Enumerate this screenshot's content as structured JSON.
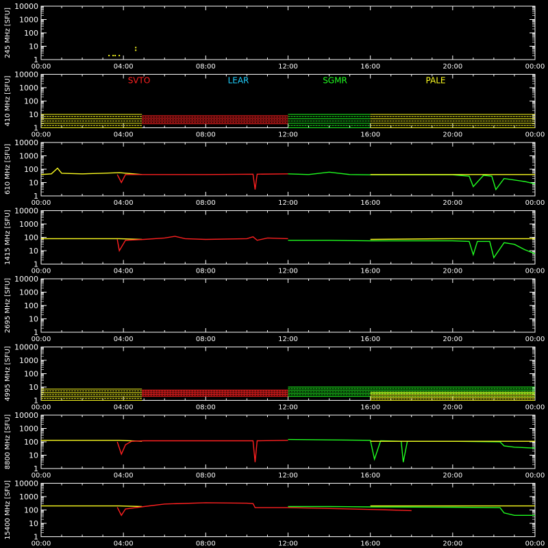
{
  "chart_data": {
    "type": "line",
    "ylabel_unit": "[SFU]",
    "y_ticks": [
      "10000",
      "1000",
      "100",
      "10",
      "1"
    ],
    "x_ticks": [
      "00:00",
      "04:00",
      "08:00",
      "12:00",
      "16:00",
      "20:00",
      "00:00"
    ],
    "xlim": [
      0,
      24
    ],
    "ylim": [
      1,
      10000
    ],
    "yscale": "log",
    "legend": [
      {
        "name": "SVTO",
        "color": "#ff2020"
      },
      {
        "name": "LEAR",
        "color": "#20d0ff"
      },
      {
        "name": "SGMR",
        "color": "#20ff20"
      },
      {
        "name": "PALE",
        "color": "#ffff20"
      }
    ],
    "panels": [
      {
        "label": "245 MHz",
        "mode": "sparse",
        "series": [
          {
            "station": "PALE",
            "points": [
              [
                3.3,
                2
              ],
              [
                3.5,
                2
              ],
              [
                3.6,
                2
              ],
              [
                3.8,
                2
              ],
              [
                4.6,
                8
              ],
              [
                4.6,
                5
              ]
            ]
          }
        ]
      },
      {
        "label": "410 MHz",
        "mode": "band",
        "series": [
          {
            "station": "PALE",
            "x": [
              0,
              4.9
            ],
            "ylow": 1,
            "yhigh": 10
          },
          {
            "station": "SVTO",
            "x": [
              4.9,
              12
            ],
            "ylow": 2,
            "yhigh": 8
          },
          {
            "station": "SGMR",
            "x": [
              12,
              16
            ],
            "ylow": 1,
            "yhigh": 10
          },
          {
            "station": "PALE",
            "x": [
              16,
              24
            ],
            "ylow": 1,
            "yhigh": 10
          }
        ]
      },
      {
        "label": "610 MHz",
        "mode": "line",
        "series": [
          {
            "station": "PALE",
            "points": [
              [
                0,
                40
              ],
              [
                0.5,
                45
              ],
              [
                0.8,
                120
              ],
              [
                1,
                50
              ],
              [
                2,
                45
              ],
              [
                3,
                50
              ],
              [
                3.8,
                55
              ],
              [
                4.9,
                40
              ]
            ]
          },
          {
            "station": "SVTO",
            "points": [
              [
                3.7,
                40
              ],
              [
                3.9,
                10
              ],
              [
                4.1,
                40
              ],
              [
                5,
                40
              ],
              [
                8,
                40
              ],
              [
                10.3,
                42
              ],
              [
                10.4,
                3
              ],
              [
                10.5,
                42
              ],
              [
                12,
                45
              ]
            ]
          },
          {
            "station": "SGMR",
            "points": [
              [
                12,
                45
              ],
              [
                13,
                40
              ],
              [
                14,
                60
              ],
              [
                15,
                40
              ],
              [
                16,
                38
              ],
              [
                17,
                38
              ],
              [
                20,
                38
              ],
              [
                20.8,
                30
              ],
              [
                21,
                5
              ],
              [
                21.5,
                35
              ],
              [
                21.9,
                30
              ],
              [
                22.1,
                3
              ],
              [
                22.5,
                20
              ],
              [
                23.5,
                12
              ],
              [
                24,
                8
              ]
            ]
          },
          {
            "station": "PALE",
            "points": [
              [
                16,
                40
              ],
              [
                20,
                40
              ],
              [
                24,
                40
              ]
            ]
          }
        ]
      },
      {
        "label": "1415 MHz",
        "mode": "line",
        "series": [
          {
            "station": "PALE",
            "points": [
              [
                0,
                80
              ],
              [
                2,
                80
              ],
              [
                3.8,
                80
              ],
              [
                4.9,
                70
              ]
            ]
          },
          {
            "station": "SVTO",
            "points": [
              [
                3.7,
                70
              ],
              [
                3.8,
                10
              ],
              [
                4.1,
                60
              ],
              [
                5,
                70
              ],
              [
                6,
                90
              ],
              [
                6.5,
                120
              ],
              [
                7,
                80
              ],
              [
                8,
                70
              ],
              [
                10,
                80
              ],
              [
                10.3,
                110
              ],
              [
                10.5,
                60
              ],
              [
                11,
                90
              ],
              [
                12,
                80
              ]
            ]
          },
          {
            "station": "SGMR",
            "points": [
              [
                12,
                60
              ],
              [
                14,
                60
              ],
              [
                16,
                55
              ],
              [
                17,
                55
              ],
              [
                20,
                55
              ],
              [
                20.8,
                50
              ],
              [
                21,
                5
              ],
              [
                21.2,
                50
              ],
              [
                21.8,
                50
              ],
              [
                22,
                3
              ],
              [
                22.5,
                40
              ],
              [
                23,
                30
              ],
              [
                23.5,
                12
              ],
              [
                24,
                6
              ]
            ]
          },
          {
            "station": "PALE",
            "points": [
              [
                16,
                70
              ],
              [
                20,
                80
              ],
              [
                24,
                80
              ]
            ]
          }
        ]
      },
      {
        "label": "2695 MHz",
        "mode": "none",
        "series": []
      },
      {
        "label": "4995 MHz",
        "mode": "band",
        "series": [
          {
            "station": "PALE",
            "x": [
              0,
              4.9
            ],
            "ylow": 1,
            "yhigh": 7
          },
          {
            "station": "SVTO",
            "x": [
              4.9,
              12
            ],
            "ylow": 2,
            "yhigh": 6
          },
          {
            "station": "SGMR",
            "x": [
              12,
              24
            ],
            "ylow": 2,
            "yhigh": 10
          },
          {
            "station": "PALE",
            "x": [
              16,
              24
            ],
            "ylow": 1,
            "yhigh": 4
          }
        ]
      },
      {
        "label": "8800 MHz",
        "mode": "line",
        "series": [
          {
            "station": "PALE",
            "points": [
              [
                0,
                130
              ],
              [
                2,
                130
              ],
              [
                3.8,
                130
              ],
              [
                4.9,
                110
              ]
            ]
          },
          {
            "station": "SVTO",
            "points": [
              [
                3.7,
                100
              ],
              [
                3.9,
                12
              ],
              [
                4.1,
                60
              ],
              [
                4.4,
                110
              ],
              [
                5,
                120
              ],
              [
                8,
                120
              ],
              [
                10.3,
                120
              ],
              [
                10.4,
                3
              ],
              [
                10.5,
                120
              ],
              [
                12,
                130
              ]
            ]
          },
          {
            "station": "SGMR",
            "points": [
              [
                12,
                150
              ],
              [
                14,
                140
              ],
              [
                16,
                130
              ],
              [
                16.2,
                5
              ],
              [
                16.5,
                120
              ],
              [
                17.5,
                110
              ],
              [
                17.6,
                3
              ],
              [
                17.8,
                110
              ],
              [
                20,
                110
              ],
              [
                22.3,
                100
              ],
              [
                22.5,
                50
              ],
              [
                23,
                40
              ],
              [
                23.8,
                35
              ],
              [
                24,
                35
              ]
            ]
          },
          {
            "station": "PALE",
            "points": [
              [
                16,
                110
              ],
              [
                20,
                110
              ],
              [
                24,
                110
              ]
            ]
          }
        ]
      },
      {
        "label": "15400 MHz",
        "mode": "line",
        "series": [
          {
            "station": "PALE",
            "points": [
              [
                0,
                200
              ],
              [
                2,
                200
              ],
              [
                3.8,
                200
              ],
              [
                4.9,
                180
              ]
            ]
          },
          {
            "station": "SVTO",
            "points": [
              [
                3.7,
                160
              ],
              [
                3.9,
                40
              ],
              [
                4.1,
                120
              ],
              [
                5,
                180
              ],
              [
                6,
                280
              ],
              [
                8,
                350
              ],
              [
                10,
                320
              ],
              [
                10.3,
                300
              ],
              [
                10.4,
                150
              ],
              [
                12,
                150
              ],
              [
                14,
                130
              ],
              [
                16,
                110
              ],
              [
                17,
                100
              ],
              [
                18,
                90
              ]
            ]
          },
          {
            "station": "SGMR",
            "points": [
              [
                12,
                180
              ],
              [
                14,
                180
              ],
              [
                16,
                170
              ],
              [
                20,
                160
              ],
              [
                22.3,
                150
              ],
              [
                22.5,
                60
              ],
              [
                23,
                40
              ],
              [
                24,
                40
              ]
            ]
          },
          {
            "station": "PALE",
            "points": [
              [
                16,
                200
              ],
              [
                20,
                200
              ],
              [
                24,
                200
              ]
            ]
          }
        ]
      }
    ]
  }
}
